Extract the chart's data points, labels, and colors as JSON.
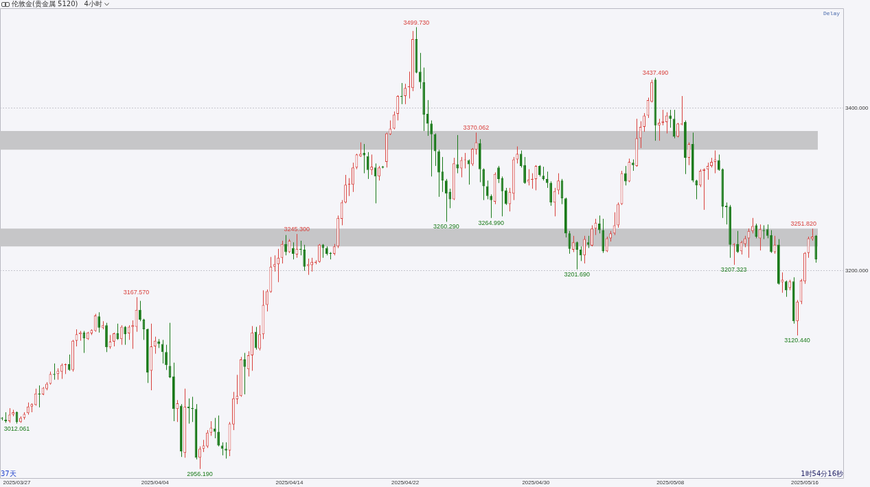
{
  "chart_data": {
    "type": "candlestick",
    "title": "伦敦金(贵金属 5120)",
    "subtitle": "4小时",
    "categories": [
      null,
      null,
      null,
      null,
      "2025/03/27",
      null,
      null,
      null,
      null,
      null,
      null,
      null,
      null,
      null,
      null,
      null,
      null,
      null,
      null,
      null,
      null,
      null,
      null,
      null,
      null,
      null,
      null,
      null,
      null,
      null,
      null,
      null,
      null,
      null,
      null,
      null,
      null,
      null,
      null,
      null,
      null,
      "2025/04/04",
      null,
      null,
      null,
      null,
      null,
      null,
      null,
      null,
      null,
      null,
      null,
      null,
      null,
      null,
      null,
      null,
      null,
      null,
      null,
      null,
      null,
      null,
      null,
      null,
      null,
      null,
      null,
      null,
      null,
      null,
      null,
      null,
      null,
      null,
      null,
      "2025/04/14",
      null,
      null,
      null,
      null,
      null,
      null,
      null,
      null,
      null,
      null,
      null,
      null,
      null,
      null,
      null,
      null,
      null,
      null,
      null,
      null,
      null,
      null,
      null,
      null,
      null,
      null,
      null,
      null,
      null,
      null,
      "2025/04/22",
      null,
      null,
      null,
      null,
      null,
      null,
      null,
      null,
      null,
      null,
      null,
      null,
      null,
      null,
      null,
      null,
      null,
      null,
      null,
      null,
      null,
      null,
      null,
      null,
      null,
      null,
      null,
      null,
      null,
      null,
      null,
      null,
      null,
      null,
      "2025/04/30",
      null,
      null,
      null,
      null,
      null,
      null,
      null,
      null,
      null,
      null,
      null,
      null,
      null,
      null,
      null,
      null,
      null,
      null,
      null,
      null,
      null,
      null,
      null,
      null,
      null,
      null,
      null,
      null,
      null,
      null,
      null,
      null,
      null,
      null,
      null,
      "2025/05/08",
      null,
      null,
      null,
      null,
      null,
      null,
      null,
      null,
      null,
      null,
      null,
      null,
      null,
      null,
      null,
      null,
      null,
      null,
      null,
      null,
      null,
      null,
      null,
      null,
      null,
      null,
      null,
      null,
      null,
      null,
      null,
      null,
      null,
      null,
      null,
      "2025/05/16",
      null,
      null,
      null
    ],
    "ohlc": [
      [
        3019,
        3020,
        3016,
        3018
      ],
      [
        3017,
        3026,
        3013,
        3015
      ],
      [
        3015,
        3031,
        3013,
        3023
      ],
      [
        3023,
        3029,
        3021,
        3026
      ],
      [
        3026,
        3027,
        3012.061,
        3014
      ],
      [
        3014,
        3021,
        3013,
        3019
      ],
      [
        3019,
        3026,
        3017,
        3024
      ],
      [
        3025,
        3038,
        3023,
        3033
      ],
      [
        3033,
        3037,
        3026,
        3036
      ],
      [
        3035,
        3055,
        3034,
        3049
      ],
      [
        3049,
        3059,
        3032,
        3048
      ],
      [
        3048,
        3057,
        3047,
        3056
      ],
      [
        3055,
        3063,
        3053,
        3061
      ],
      [
        3061,
        3076,
        3060,
        3073
      ],
      [
        3073,
        3086,
        3066,
        3072
      ],
      [
        3073,
        3080,
        3066,
        3077
      ],
      [
        3076,
        3086,
        3067,
        3084
      ],
      [
        3084,
        3086,
        3073,
        3085
      ],
      [
        3085,
        3097,
        3077,
        3078
      ],
      [
        3078,
        3115,
        3076,
        3114
      ],
      [
        3114,
        3128,
        3107,
        3122
      ],
      [
        3122,
        3126,
        3114,
        3124
      ],
      [
        3124,
        3126,
        3099,
        3117
      ],
      [
        3116,
        3125,
        3115,
        3124
      ],
      [
        3123,
        3128,
        3121,
        3127
      ],
      [
        3126,
        3147,
        3125,
        3145
      ],
      [
        3144,
        3149,
        3124,
        3130
      ],
      [
        3130,
        3138,
        3128,
        3133
      ],
      [
        3133,
        3136,
        3100,
        3106
      ],
      [
        3106,
        3121,
        3104,
        3113
      ],
      [
        3113,
        3124,
        3107,
        3123
      ],
      [
        3123,
        3135,
        3115,
        3116
      ],
      [
        3116,
        3133,
        3109,
        3131
      ],
      [
        3131,
        3132,
        3109,
        3122
      ],
      [
        3123,
        3133,
        3115,
        3131
      ],
      [
        3131,
        3139,
        3104,
        3133
      ],
      [
        3131,
        3167.57,
        3125,
        3152
      ],
      [
        3152,
        3163,
        3138,
        3140
      ],
      [
        3140,
        3141,
        3115,
        3128
      ],
      [
        3128,
        3129,
        3062,
        3075
      ],
      [
        3077,
        3135,
        3053,
        3107
      ],
      [
        3107,
        3119,
        3098,
        3114
      ],
      [
        3113,
        3116,
        3105,
        3110
      ],
      [
        3110,
        3115,
        3086,
        3100
      ],
      [
        3100,
        3109,
        3078,
        3084
      ],
      [
        3083,
        3136,
        3068,
        3069
      ],
      [
        3070,
        3087,
        3015,
        3030
      ],
      [
        3030,
        3041,
        3014,
        3037
      ],
      [
        3034,
        3036,
        2971,
        2978
      ],
      [
        2976,
        3055,
        2970,
        3033
      ],
      [
        3033,
        3043,
        3012,
        3031
      ],
      [
        3031,
        3045,
        3014,
        3030
      ],
      [
        3030,
        3036,
        2968,
        2970
      ],
      [
        2970,
        2984,
        2956.19,
        2981
      ],
      [
        2981,
        2992,
        2977,
        2985
      ],
      [
        2984,
        3004,
        2982,
        3001
      ],
      [
        3001,
        3015,
        2997,
        3007
      ],
      [
        3006,
        3019,
        2994,
        3002
      ],
      [
        3002,
        3022,
        2984,
        2985
      ],
      [
        2985,
        2989,
        2973,
        2981
      ],
      [
        2981,
        2989,
        2969,
        2979
      ],
      [
        2979,
        3014,
        2972,
        3012
      ],
      [
        3011,
        3051,
        3004,
        3043
      ],
      [
        3042,
        3072,
        3036,
        3046
      ],
      [
        3046,
        3094,
        3045,
        3091
      ],
      [
        3091,
        3099,
        3048,
        3082
      ],
      [
        3079,
        3101,
        3070,
        3096
      ],
      [
        3096,
        3132,
        3077,
        3124
      ],
      [
        3125,
        3131,
        3103,
        3105
      ],
      [
        3104,
        3133,
        3102,
        3122
      ],
      [
        3122,
        3176,
        3116,
        3158
      ],
      [
        3158,
        3177,
        3150,
        3175
      ],
      [
        3174,
        3217,
        3173,
        3205
      ],
      [
        3205,
        3219,
        3199,
        3208
      ],
      [
        3208,
        3227,
        3186,
        3216
      ],
      [
        3216,
        3237,
        3209,
        3233
      ],
      [
        3233,
        3244,
        3219,
        3223
      ],
      [
        3223,
        3239,
        3222,
        3237
      ],
      [
        3228,
        3235,
        3214,
        3221
      ],
      [
        3220,
        3245.3,
        3216,
        3227
      ],
      [
        3227,
        3237,
        3219,
        3226
      ],
      [
        3226,
        3232,
        3200,
        3205
      ],
      [
        3206,
        3215,
        3195,
        3208
      ],
      [
        3207,
        3216,
        3199,
        3211
      ],
      [
        3210,
        3213,
        3208,
        3211
      ],
      [
        3211,
        3233,
        3210,
        3232
      ],
      [
        3232,
        3233,
        3216,
        3228
      ],
      [
        3228,
        3230,
        3219,
        3221
      ],
      [
        3222,
        3223,
        3214,
        3221
      ],
      [
        3221,
        3233,
        3219,
        3230
      ],
      [
        3230,
        3268,
        3228,
        3265
      ],
      [
        3264,
        3287,
        3256,
        3284
      ],
      [
        3284,
        3318,
        3283,
        3306
      ],
      [
        3306,
        3314,
        3292,
        3307
      ],
      [
        3306,
        3333,
        3297,
        3327
      ],
      [
        3327,
        3344,
        3325,
        3343
      ],
      [
        3341,
        3358,
        3340,
        3344
      ],
      [
        3345,
        3356,
        3320,
        3342
      ],
      [
        3341,
        3346,
        3313,
        3324
      ],
      [
        3324,
        3343,
        3318,
        3328
      ],
      [
        3327,
        3332,
        3283,
        3316
      ],
      [
        3316,
        3329,
        3311,
        3327
      ],
      [
        3328,
        3329,
        3326,
        3327
      ],
      [
        3334,
        3370,
        3327,
        3369
      ],
      [
        3368,
        3385,
        3367,
        3375
      ],
      [
        3375,
        3396,
        3374,
        3392
      ],
      [
        3393,
        3416,
        3385,
        3415
      ],
      [
        3415,
        3431,
        3405,
        3414
      ],
      [
        3415,
        3430,
        3405,
        3425
      ],
      [
        3426,
        3445,
        3412,
        3427
      ],
      [
        3425,
        3495,
        3421,
        3485
      ],
      [
        3485,
        3499.73,
        3443,
        3444
      ],
      [
        3445,
        3468,
        3424,
        3432
      ],
      [
        3432,
        3450,
        3372,
        3392
      ],
      [
        3393,
        3410,
        3366,
        3381
      ],
      [
        3381,
        3385,
        3316,
        3368
      ],
      [
        3368,
        3369,
        3329,
        3347
      ],
      [
        3347,
        3349,
        3291,
        3321
      ],
      [
        3322,
        3340,
        3297,
        3311
      ],
      [
        3311,
        3313,
        3260.29,
        3295
      ],
      [
        3297,
        3301,
        3277,
        3288
      ],
      [
        3288,
        3339,
        3287,
        3332
      ],
      [
        3331,
        3367,
        3320,
        3326
      ],
      [
        3326,
        3340,
        3315,
        3336
      ],
      [
        3336,
        3345,
        3326,
        3337
      ],
      [
        3336,
        3337,
        3306,
        3331
      ],
      [
        3331,
        3351,
        3329,
        3350
      ],
      [
        3349,
        3370.062,
        3343,
        3358
      ],
      [
        3357,
        3362,
        3309,
        3325
      ],
      [
        3325,
        3326,
        3287,
        3304
      ],
      [
        3304,
        3311,
        3288,
        3292
      ],
      [
        3292,
        3294,
        3264.99,
        3287
      ],
      [
        3285,
        3321,
        3282,
        3319
      ],
      [
        3327,
        3329,
        3308,
        3313
      ],
      [
        3314,
        3316,
        3267,
        3298
      ],
      [
        3299,
        3302,
        3281,
        3282
      ],
      [
        3282,
        3302,
        3273,
        3297
      ],
      [
        3295,
        3340,
        3287,
        3337
      ],
      [
        3337,
        3353,
        3332,
        3344
      ],
      [
        3344,
        3348,
        3327,
        3329
      ],
      [
        3330,
        3340,
        3307,
        3308
      ],
      [
        3309,
        3325,
        3305,
        3312
      ],
      [
        3312,
        3320,
        3301,
        3313
      ],
      [
        3313,
        3330,
        3299,
        3329
      ],
      [
        3329,
        3330,
        3316,
        3318
      ],
      [
        3317,
        3328,
        3311,
        3313
      ],
      [
        3313,
        3322,
        3302,
        3308
      ],
      [
        3308,
        3310,
        3280,
        3284
      ],
      [
        3284,
        3302,
        3267,
        3298
      ],
      [
        3299,
        3320,
        3294,
        3311
      ],
      [
        3311,
        3313,
        3282,
        3289
      ],
      [
        3289,
        3290,
        3241,
        3246
      ],
      [
        3246,
        3249,
        3221,
        3227
      ],
      [
        3226,
        3243,
        3223,
        3235
      ],
      [
        3235,
        3236,
        3201.69,
        3226
      ],
      [
        3226,
        3230,
        3212,
        3219
      ],
      [
        3219,
        3243,
        3209,
        3239
      ],
      [
        3235,
        3243,
        3228,
        3232
      ],
      [
        3231,
        3256,
        3230,
        3252
      ],
      [
        3252,
        3264,
        3244,
        3259
      ],
      [
        3258,
        3268,
        3246,
        3250
      ],
      [
        3250,
        3264,
        3222,
        3224
      ],
      [
        3224,
        3242,
        3223,
        3240
      ],
      [
        3240,
        3249,
        3236,
        3246
      ],
      [
        3246,
        3272,
        3244,
        3256
      ],
      [
        3256,
        3284,
        3253,
        3282
      ],
      [
        3282,
        3323,
        3281,
        3320
      ],
      [
        3320,
        3329,
        3305,
        3310
      ],
      [
        3310,
        3338,
        3309,
        3334
      ],
      [
        3333,
        3337,
        3323,
        3330
      ],
      [
        3329,
        3387,
        3328,
        3363
      ],
      [
        3363,
        3384,
        3351,
        3377
      ],
      [
        3377,
        3394,
        3371,
        3391
      ],
      [
        3391,
        3413,
        3388,
        3410
      ],
      [
        3408,
        3435,
        3407,
        3432
      ],
      [
        3435,
        3437.49,
        3360,
        3379
      ],
      [
        3379,
        3387,
        3360,
        3382
      ],
      [
        3382,
        3398,
        3379,
        3384
      ],
      [
        3383,
        3395,
        3369,
        3391
      ],
      [
        3391,
        3398,
        3376,
        3387
      ],
      [
        3387,
        3398,
        3363,
        3365
      ],
      [
        3365,
        3382,
        3364,
        3381
      ],
      [
        3380,
        3415,
        3379,
        3381
      ],
      [
        3383,
        3385,
        3319,
        3339
      ],
      [
        3339,
        3358,
        3330,
        3356
      ],
      [
        3356,
        3370,
        3309,
        3311
      ],
      [
        3311,
        3312,
        3288,
        3305
      ],
      [
        3305,
        3325,
        3303,
        3323
      ],
      [
        3323,
        3326,
        3275,
        3325
      ],
      [
        3325,
        3333,
        3312,
        3329
      ],
      [
        3329,
        3339,
        3327,
        3334
      ],
      [
        3334,
        3348,
        3320,
        3337
      ],
      [
        3336,
        3343,
        3323,
        3324
      ],
      [
        3325,
        3326,
        3265,
        3279
      ],
      [
        3280,
        3284,
        3257,
        3278
      ],
      [
        3279,
        3281,
        3216,
        3232
      ],
      [
        3232,
        3234,
        3207.323,
        3233
      ],
      [
        3233,
        3249,
        3222,
        3223
      ],
      [
        3224,
        3237,
        3220,
        3235
      ],
      [
        3233,
        3243,
        3229,
        3240
      ],
      [
        3240,
        3252,
        3216,
        3249
      ],
      [
        3249,
        3265,
        3246,
        3255
      ],
      [
        3256,
        3258,
        3240,
        3242
      ],
      [
        3240,
        3257,
        3225,
        3251
      ],
      [
        3250,
        3256,
        3239,
        3249
      ],
      [
        3251,
        3257,
        3240,
        3243
      ],
      [
        3244,
        3250,
        3222,
        3223
      ],
      [
        3223,
        3243,
        3221,
        3232
      ],
      [
        3232,
        3239,
        3183,
        3184
      ],
      [
        3186,
        3198,
        3173,
        3189
      ],
      [
        3187,
        3188,
        3168,
        3176
      ],
      [
        3179,
        3189,
        3176,
        3187
      ],
      [
        3187,
        3192,
        3135,
        3138
      ],
      [
        3138,
        3164,
        3120.44,
        3162
      ],
      [
        3162,
        3190,
        3159,
        3188
      ],
      [
        3187,
        3223,
        3184,
        3222
      ],
      [
        3222,
        3242,
        3216,
        3240
      ],
      [
        3239,
        3251.82,
        3237,
        3242
      ],
      [
        3243,
        3244,
        3210,
        3214
      ]
    ],
    "colors": [
      "#1a7a1a",
      "#1a7a1a",
      "#d8403c",
      "#d8403c",
      "#1a7a1a",
      "#d8403c",
      "#d8403c",
      "#d8403c",
      "#d8403c",
      "#d8403c",
      "#1a7a1a",
      "#d8403c",
      "#d8403c",
      "#d8403c",
      "#1a7a1a",
      "#d8403c",
      "#d8403c",
      "#d8403c",
      "#1a7a1a",
      "#d8403c",
      "#d8403c",
      "#d8403c",
      "#1a7a1a",
      "#d8403c",
      "#d8403c",
      "#d8403c",
      "#1a7a1a",
      "#d8403c",
      "#1a7a1a",
      "#d8403c",
      "#d8403c",
      "#1a7a1a",
      "#d8403c",
      "#1a7a1a",
      "#d8403c",
      "#d8403c",
      "#d8403c",
      "#1a7a1a",
      "#1a7a1a",
      "#1a7a1a",
      "#d8403c",
      "#d8403c",
      "#1a7a1a",
      "#1a7a1a",
      "#1a7a1a",
      "#1a7a1a",
      "#1a7a1a",
      "#d8403c",
      "#1a7a1a",
      "#d8403c",
      "#1a7a1a",
      "#1a7a1a",
      "#1a7a1a",
      "#d8403c",
      "#d8403c",
      "#d8403c",
      "#d8403c",
      "#1a7a1a",
      "#1a7a1a",
      "#1a7a1a",
      "#1a7a1a",
      "#d8403c",
      "#d8403c",
      "#d8403c",
      "#d8403c",
      "#1a7a1a",
      "#d8403c",
      "#d8403c",
      "#1a7a1a",
      "#d8403c",
      "#d8403c",
      "#d8403c",
      "#d8403c",
      "#d8403c",
      "#d8403c",
      "#d8403c",
      "#1a7a1a",
      "#d8403c",
      "#1a7a1a",
      "#d8403c",
      "#1a7a1a",
      "#1a7a1a",
      "#d8403c",
      "#d8403c",
      "#d8403c",
      "#d8403c",
      "#1a7a1a",
      "#1a7a1a",
      "#1a7a1a",
      "#d8403c",
      "#d8403c",
      "#d8403c",
      "#d8403c",
      "#d8403c",
      "#d8403c",
      "#d8403c",
      "#d8403c",
      "#1a7a1a",
      "#1a7a1a",
      "#d8403c",
      "#1a7a1a",
      "#d8403c",
      "#1a7a1a",
      "#d8403c",
      "#d8403c",
      "#d8403c",
      "#d8403c",
      "#1a7a1a",
      "#d8403c",
      "#d8403c",
      "#d8403c",
      "#1a7a1a",
      "#1a7a1a",
      "#1a7a1a",
      "#1a7a1a",
      "#1a7a1a",
      "#1a7a1a",
      "#1a7a1a",
      "#1a7a1a",
      "#1a7a1a",
      "#1a7a1a",
      "#d8403c",
      "#1a7a1a",
      "#d8403c",
      "#d8403c",
      "#1a7a1a",
      "#d8403c",
      "#d8403c",
      "#1a7a1a",
      "#1a7a1a",
      "#1a7a1a",
      "#1a7a1a",
      "#d8403c",
      "#1a7a1a",
      "#1a7a1a",
      "#1a7a1a",
      "#d8403c",
      "#d8403c",
      "#d8403c",
      "#1a7a1a",
      "#1a7a1a",
      "#d8403c",
      "#d8403c",
      "#d8403c",
      "#1a7a1a",
      "#1a7a1a",
      "#1a7a1a",
      "#1a7a1a",
      "#d8403c",
      "#d8403c",
      "#1a7a1a",
      "#1a7a1a",
      "#1a7a1a",
      "#d8403c",
      "#1a7a1a",
      "#1a7a1a",
      "#d8403c",
      "#1a7a1a",
      "#d8403c",
      "#d8403c",
      "#1a7a1a",
      "#1a7a1a",
      "#d8403c",
      "#d8403c",
      "#d8403c",
      "#d8403c",
      "#d8403c",
      "#1a7a1a",
      "#d8403c",
      "#1a7a1a",
      "#d8403c",
      "#d8403c",
      "#d8403c",
      "#d8403c",
      "#d8403c",
      "#1a7a1a",
      "#d8403c",
      "#d8403c",
      "#d8403c",
      "#1a7a1a",
      "#1a7a1a",
      "#d8403c",
      "#d8403c",
      "#1a7a1a",
      "#d8403c",
      "#1a7a1a",
      "#1a7a1a",
      "#d8403c",
      "#d8403c",
      "#d8403c",
      "#d8403c",
      "#d8403c",
      "#1a7a1a",
      "#1a7a1a",
      "#1a7a1a",
      "#1a7a1a",
      "#d8403c",
      "#1a7a1a",
      "#d8403c",
      "#d8403c",
      "#d8403c",
      "#d8403c",
      "#1a7a1a",
      "#d8403c",
      "#1a7a1a",
      "#1a7a1a",
      "#1a7a1a",
      "#d8403c",
      "#1a7a1a",
      "#d8403c",
      "#1a7a1a",
      "#d8403c",
      "#1a7a1a",
      "#d8403c",
      "#d8403c",
      "#d8403c",
      "#d8403c",
      "#d8403c",
      "#1a7a1a"
    ],
    "ylim": [
      2945,
      3523
    ],
    "yticks": [
      {
        "value": 3200,
        "label": "3200.000"
      },
      {
        "value": 3400,
        "label": "3400.000"
      }
    ],
    "grid": "y",
    "bands": [
      {
        "axis": "y",
        "from": 3349,
        "to": 3372,
        "color": "#c6c6c8"
      },
      {
        "axis": "y",
        "from": 3230,
        "to": 3252,
        "color": "#c6c6c8"
      }
    ],
    "annotations": [
      {
        "text": "3499.730",
        "y": 3499.73
      },
      {
        "text": "3437.490",
        "y": 3437.49
      },
      {
        "text": "3370.062",
        "y": 3370.062
      },
      {
        "text": "3245.300",
        "y": 3245.3
      },
      {
        "text": "3251.820",
        "y": 3251.82
      },
      {
        "text": "3167.570",
        "y": 3167.57
      },
      {
        "text": "3260.290",
        "y": 3260.29
      },
      {
        "text": "3264.990",
        "y": 3264.99
      },
      {
        "text": "3201.690",
        "y": 3201.69
      },
      {
        "text": "3207.323",
        "y": 3207.323
      },
      {
        "text": "3120.440",
        "y": 3120.44
      },
      {
        "text": "3012.061",
        "y": 3012.061
      },
      {
        "text": "2956.190",
        "y": 2956.19
      },
      "Delay",
      "37天",
      "1时54分16秒"
    ]
  }
}
